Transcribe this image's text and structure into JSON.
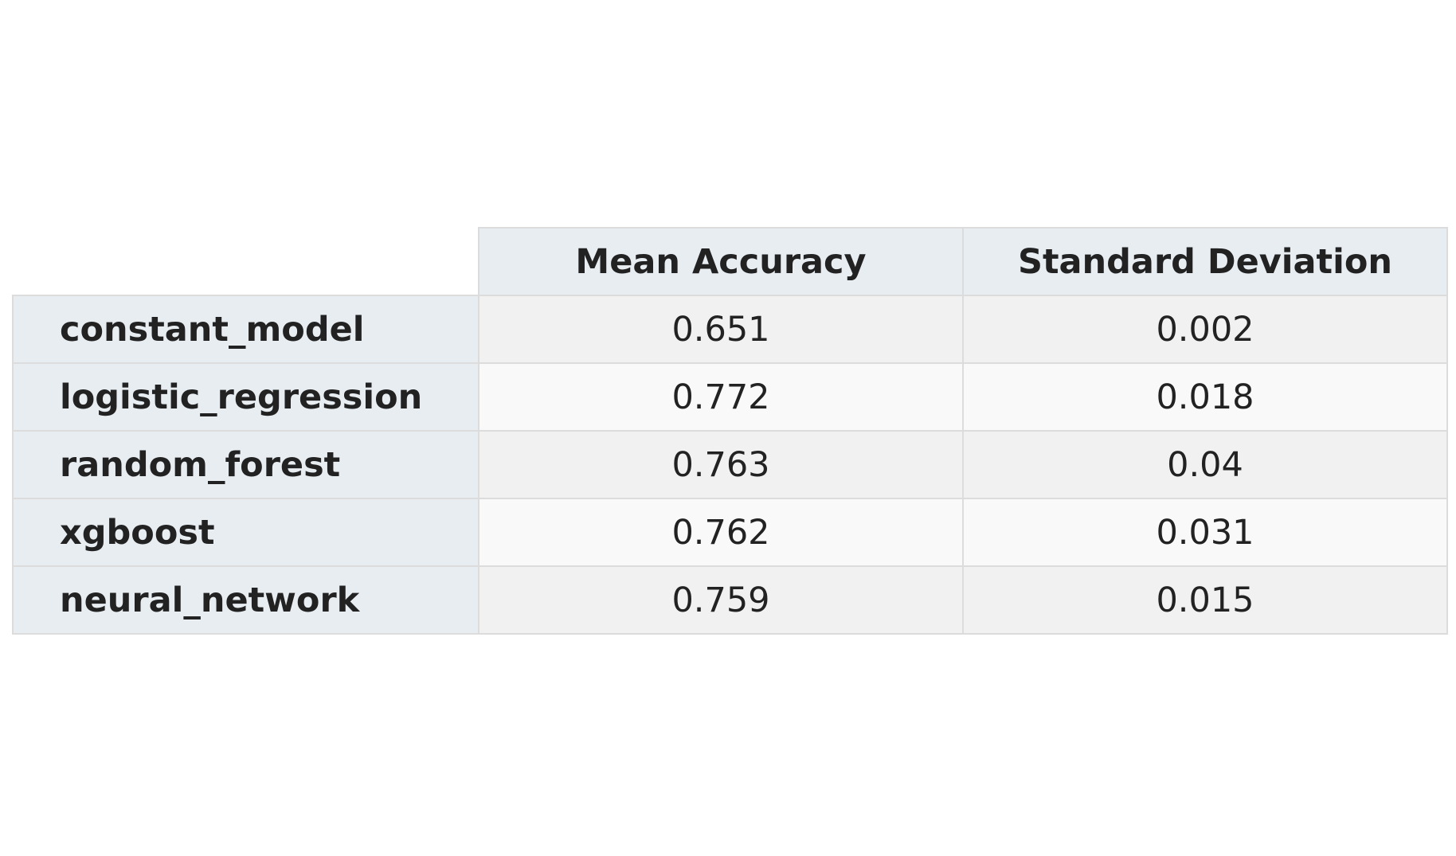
{
  "chart_data": {
    "type": "table",
    "columns": [
      "Mean Accuracy",
      "Standard Deviation"
    ],
    "rows": [
      {
        "label": "constant_model",
        "values": [
          "0.651",
          "0.002"
        ]
      },
      {
        "label": "logistic_regression",
        "values": [
          "0.772",
          "0.018"
        ]
      },
      {
        "label": "random_forest",
        "values": [
          "0.763",
          "0.04"
        ]
      },
      {
        "label": "xgboost",
        "values": [
          "0.762",
          "0.031"
        ]
      },
      {
        "label": "neural_network",
        "values": [
          "0.759",
          "0.015"
        ]
      }
    ]
  },
  "colors": {
    "header_background": "#e8edf2",
    "row_odd_background": "#f1f1f1",
    "row_even_background": "#f9f9f9",
    "border": "#dcdcdc",
    "text": "#222222"
  }
}
